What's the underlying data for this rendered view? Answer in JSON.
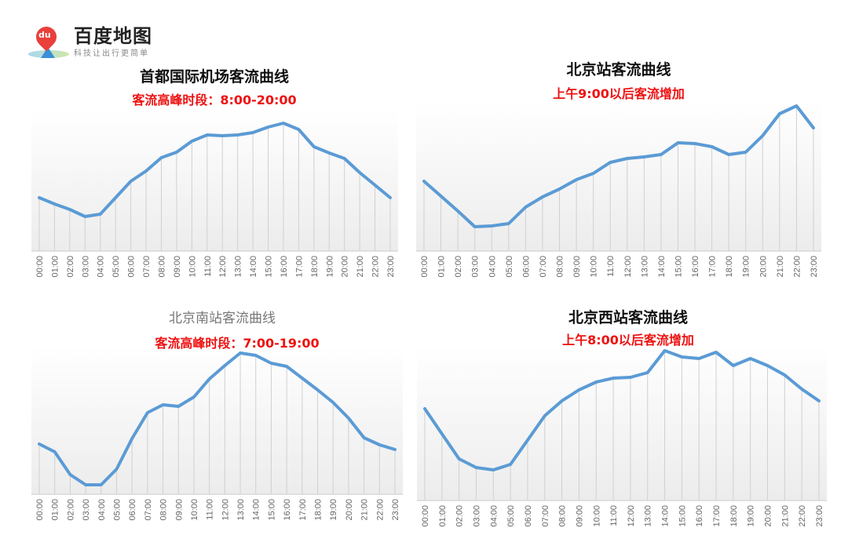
{
  "logo": {
    "brand": "百度地图",
    "slogan": "科技让出行更简单",
    "badge": "du"
  },
  "colors": {
    "line": "#5b9bd5",
    "title": "#111111",
    "subtitle": "#ee1111",
    "muted_title": "#777777",
    "grid": "#d0d0d0"
  },
  "chart_data": [
    {
      "type": "line",
      "title": "首都国际机场客流曲线",
      "subtitle": "客流高峰时段：8:00-20:00",
      "categories": [
        "00:00",
        "01:00",
        "02:00",
        "03:00",
        "04:00",
        "05:00",
        "06:00",
        "07:00",
        "08:00",
        "09:00",
        "10:00",
        "11:00",
        "12:00",
        "13:00",
        "14:00",
        "15:00",
        "16:00",
        "17:00",
        "18:00",
        "19:00",
        "20:00",
        "21:00",
        "22:00",
        "23:00"
      ],
      "values": [
        68,
        60,
        53,
        44,
        47,
        68,
        89,
        102,
        119,
        126,
        140,
        148,
        147,
        148,
        151,
        158,
        163,
        155,
        133,
        125,
        118,
        100,
        84,
        68
      ],
      "ylim": [
        0,
        200
      ],
      "y_axis_shown": false,
      "grid": "vertical"
    },
    {
      "type": "line",
      "title": "北京站客流曲线",
      "subtitle": "上午9:00以后客流增加",
      "categories": [
        "00:00",
        "01:00",
        "02:00",
        "03:00",
        "04:00",
        "05:00",
        "06:00",
        "07:00",
        "08:00",
        "09:00",
        "10:00",
        "11:00",
        "12:00",
        "13:00",
        "14:00",
        "15:00",
        "16:00",
        "17:00",
        "18:00",
        "19:00",
        "20:00",
        "21:00",
        "22:00",
        "23:00"
      ],
      "values": [
        89,
        70,
        51,
        31,
        32,
        35,
        56,
        69,
        79,
        91,
        99,
        113,
        118,
        120,
        123,
        138,
        137,
        133,
        123,
        126,
        147,
        175,
        185,
        157
      ],
      "ylim": [
        0,
        200
      ],
      "y_axis_shown": false,
      "grid": "vertical"
    },
    {
      "type": "line",
      "title": "北京南站客流曲线",
      "subtitle": "客流高峰时段：7:00-19:00",
      "categories": [
        "00:00",
        "01:00",
        "02:00",
        "03:00",
        "04:00",
        "05:00",
        "06:00",
        "07:00",
        "08:00",
        "09:00",
        "10:00",
        "11:00",
        "12:00",
        "13:00",
        "14:00",
        "15:00",
        "16:00",
        "17:00",
        "18:00",
        "19:00",
        "20:00",
        "21:00",
        "22:00",
        "23:00"
      ],
      "values": [
        64,
        54,
        25,
        12,
        12,
        32,
        71,
        104,
        114,
        112,
        124,
        147,
        164,
        180,
        177,
        167,
        163,
        148,
        133,
        117,
        97,
        72,
        63,
        57
      ],
      "ylim": [
        0,
        200
      ],
      "y_axis_shown": false,
      "grid": "vertical"
    },
    {
      "type": "line",
      "title": "北京西站客流曲线",
      "subtitle": "上午8:00以后客流增加",
      "categories": [
        "00:00",
        "01:00",
        "02:00",
        "03:00",
        "04:00",
        "05:00",
        "06:00",
        "07:00",
        "08:00",
        "09:00",
        "10:00",
        "11:00",
        "12:00",
        "13:00",
        "14:00",
        "15:00",
        "16:00",
        "17:00",
        "18:00",
        "19:00",
        "20:00",
        "21:00",
        "22:00",
        "23:00"
      ],
      "values": [
        117,
        85,
        53,
        42,
        39,
        46,
        77,
        108,
        127,
        141,
        151,
        156,
        157,
        163,
        191,
        183,
        181,
        189,
        172,
        181,
        172,
        160,
        142,
        127
      ],
      "ylim": [
        0,
        200
      ],
      "y_axis_shown": false,
      "grid": "vertical"
    }
  ]
}
